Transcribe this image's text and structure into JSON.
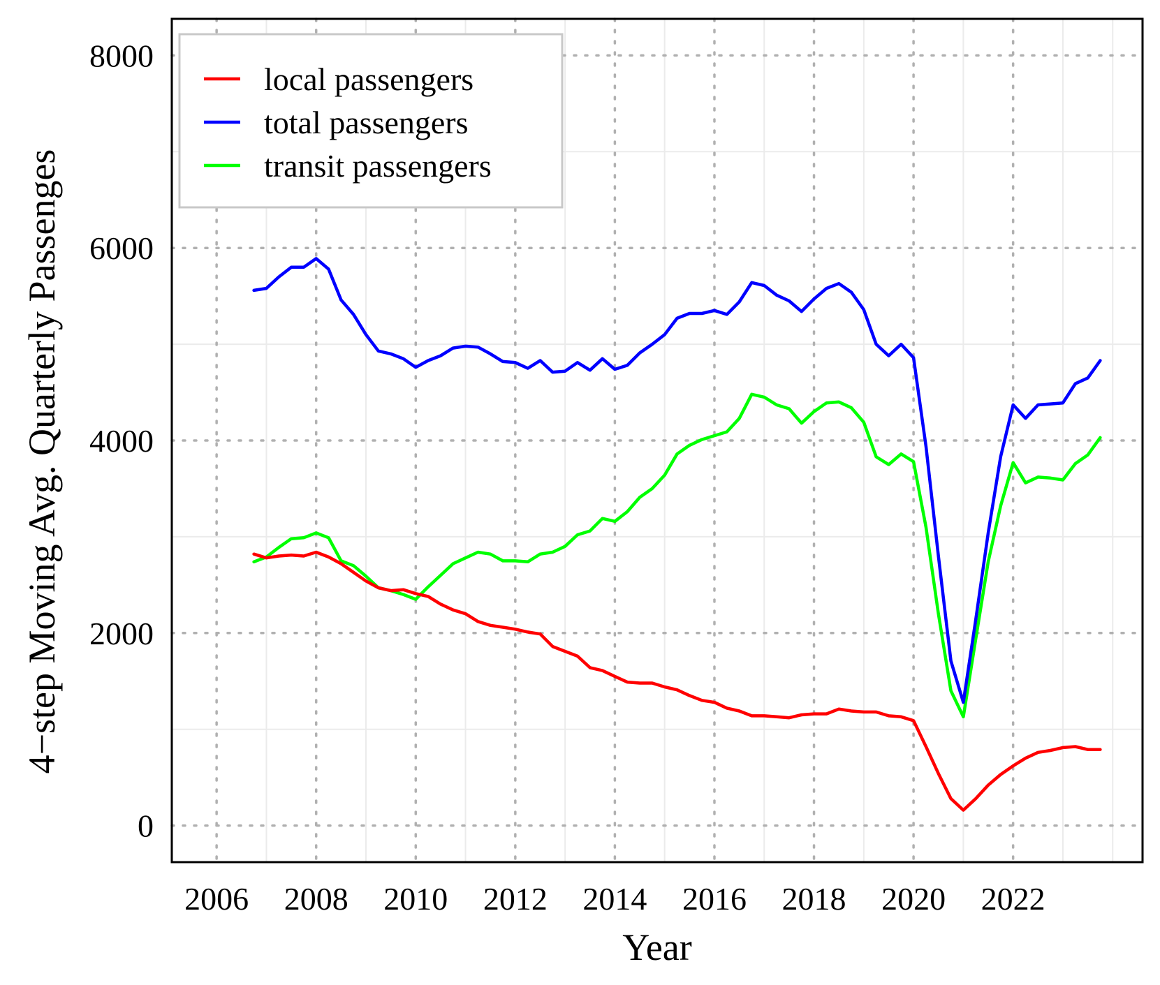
{
  "chart_data": {
    "type": "line",
    "title": "",
    "xlabel": "Year",
    "ylabel": "4−step Moving Avg. Quarterly Passenges",
    "xlim": [
      2005.1,
      2024.6
    ],
    "ylim": [
      -380,
      8380
    ],
    "x_ticks": [
      2006,
      2008,
      2010,
      2012,
      2014,
      2016,
      2018,
      2020,
      2022
    ],
    "x_tick_labels": [
      "2006",
      "2008",
      "2010",
      "2012",
      "2014",
      "2016",
      "2018",
      "2020",
      "2022"
    ],
    "y_ticks": [
      0,
      2000,
      4000,
      6000,
      8000
    ],
    "y_tick_labels": [
      "0",
      "2000",
      "4000",
      "6000",
      "8000"
    ],
    "grid": true,
    "legend_position": "top-left",
    "x": [
      2006.75,
      2007,
      2007.25,
      2007.5,
      2007.75,
      2008,
      2008.25,
      2008.5,
      2008.75,
      2009,
      2009.25,
      2009.5,
      2009.75,
      2010,
      2010.25,
      2010.5,
      2010.75,
      2011,
      2011.25,
      2011.5,
      2011.75,
      2012,
      2012.25,
      2012.5,
      2012.75,
      2013,
      2013.25,
      2013.5,
      2013.75,
      2014,
      2014.25,
      2014.5,
      2014.75,
      2015,
      2015.25,
      2015.5,
      2015.75,
      2016,
      2016.25,
      2016.5,
      2016.75,
      2017,
      2017.25,
      2017.5,
      2017.75,
      2018,
      2018.25,
      2018.5,
      2018.75,
      2019,
      2019.25,
      2019.5,
      2019.75,
      2020,
      2020.25,
      2020.5,
      2020.75,
      2021,
      2021.25,
      2021.5,
      2021.75,
      2022,
      2022.25,
      2022.5,
      2022.75,
      2023,
      2023.25,
      2023.5,
      2023.75
    ],
    "series": [
      {
        "name": "local passengers",
        "color": "#ff0000",
        "values": [
          2820,
          2780,
          2800,
          2810,
          2800,
          2840,
          2790,
          2720,
          2630,
          2540,
          2470,
          2440,
          2450,
          2410,
          2380,
          2300,
          2240,
          2200,
          2120,
          2080,
          2060,
          2040,
          2010,
          1990,
          1860,
          1810,
          1760,
          1640,
          1610,
          1550,
          1490,
          1480,
          1480,
          1440,
          1410,
          1350,
          1300,
          1280,
          1220,
          1190,
          1140,
          1140,
          1130,
          1120,
          1150,
          1160,
          1160,
          1210,
          1190,
          1180,
          1180,
          1140,
          1130,
          1090,
          820,
          540,
          280,
          160,
          280,
          420,
          530,
          620,
          700,
          760,
          780,
          810,
          820,
          790,
          790
        ]
      },
      {
        "name": "total passengers",
        "color": "#0000ff",
        "values": [
          5560,
          5580,
          5700,
          5800,
          5800,
          5890,
          5780,
          5460,
          5310,
          5100,
          4930,
          4900,
          4850,
          4760,
          4830,
          4880,
          4960,
          4980,
          4970,
          4900,
          4820,
          4810,
          4750,
          4830,
          4710,
          4720,
          4810,
          4730,
          4850,
          4740,
          4780,
          4910,
          5000,
          5100,
          5270,
          5320,
          5320,
          5350,
          5310,
          5440,
          5640,
          5610,
          5510,
          5450,
          5340,
          5470,
          5580,
          5630,
          5540,
          5360,
          5000,
          4880,
          5000,
          4860,
          3940,
          2800,
          1710,
          1280,
          2140,
          3040,
          3830,
          4370,
          4230,
          4370,
          4380,
          4390,
          4590,
          4650,
          4830
        ]
      },
      {
        "name": "transit passengers",
        "color": "#00ff00",
        "values": [
          2740,
          2790,
          2890,
          2980,
          2990,
          3040,
          2990,
          2750,
          2700,
          2590,
          2470,
          2440,
          2400,
          2350,
          2480,
          2600,
          2720,
          2780,
          2840,
          2820,
          2750,
          2750,
          2740,
          2820,
          2840,
          2900,
          3020,
          3060,
          3190,
          3160,
          3260,
          3410,
          3500,
          3640,
          3860,
          3950,
          4010,
          4050,
          4090,
          4230,
          4480,
          4450,
          4370,
          4330,
          4180,
          4300,
          4390,
          4400,
          4340,
          4190,
          3830,
          3750,
          3860,
          3780,
          3100,
          2200,
          1400,
          1130,
          1940,
          2740,
          3320,
          3770,
          3560,
          3620,
          3610,
          3590,
          3760,
          3850,
          4030
        ]
      }
    ]
  }
}
